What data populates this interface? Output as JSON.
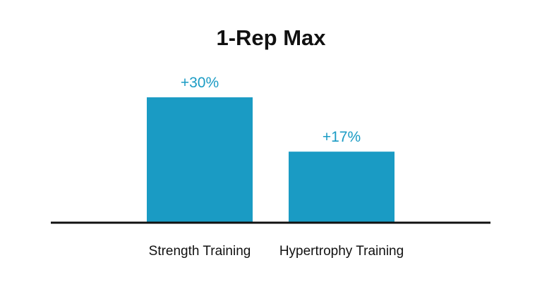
{
  "chart_data": {
    "type": "bar",
    "title": "1-Rep Max",
    "categories": [
      "Strength Training",
      "Hypertrophy Training"
    ],
    "values": [
      30,
      17
    ],
    "data_labels": [
      "+30%",
      "+17%"
    ],
    "unit": "%",
    "ylim": [
      0,
      35
    ],
    "grid": false,
    "legend": "none",
    "bar_color": "#1a9bc4",
    "axis_color": "#111111",
    "label_color": "#1a9bc4"
  }
}
